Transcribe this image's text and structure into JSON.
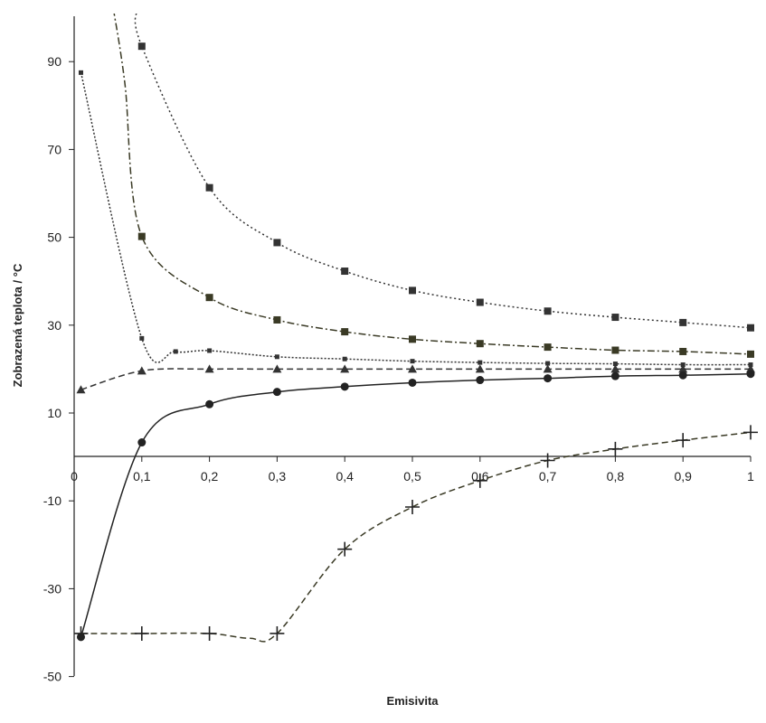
{
  "chart_data": {
    "type": "line",
    "xlabel": "Emisivita",
    "ylabel": "Zobrazená teplota / °C",
    "xlim": [
      0,
      1
    ],
    "ylim": [
      -50,
      100
    ],
    "x_ticks": [
      "0",
      "0,1",
      "0,2",
      "0,3",
      "0,4",
      "0,5",
      "0,6",
      "0,7",
      "0,8",
      "0,9",
      "1"
    ],
    "y_ticks": [
      "-50",
      "-30",
      "-10",
      "10",
      "30",
      "50",
      "70",
      "90"
    ],
    "y_tick_values": [
      -50,
      -30,
      -10,
      10,
      30,
      50,
      70,
      90
    ],
    "grid": false,
    "series": [
      {
        "marker": "square",
        "color": "#333333",
        "dash": "2,3",
        "x": [
          0.1,
          0.2,
          0.3,
          0.4,
          0.5,
          0.6,
          0.7,
          0.8,
          0.9,
          1.0
        ],
        "y": [
          93.5,
          61.3,
          48.8,
          42.3,
          37.9,
          35.2,
          33.2,
          31.8,
          30.6,
          29.4
        ]
      },
      {
        "marker": "square",
        "color": "#3a3a25",
        "dash": "8,3,2,3",
        "x": [
          0.1,
          0.2,
          0.3,
          0.4,
          0.5,
          0.6,
          0.7,
          0.8,
          0.9,
          1.0
        ],
        "y": [
          50.2,
          36.3,
          31.2,
          28.5,
          26.8,
          25.8,
          25.0,
          24.3,
          24.0,
          23.4
        ]
      },
      {
        "marker": "small-square",
        "color": "#333333",
        "dash": "2,2",
        "x": [
          0.01,
          0.1,
          0.15,
          0.2,
          0.3,
          0.4,
          0.5,
          0.6,
          0.7,
          0.8,
          0.9,
          1.0
        ],
        "y": [
          87.5,
          27.0,
          24.0,
          24.2,
          22.8,
          22.3,
          21.8,
          21.5,
          21.3,
          21.2,
          21.0,
          21.0
        ]
      },
      {
        "marker": "triangle",
        "color": "#333333",
        "dash": "7,4",
        "x": [
          0.01,
          0.1,
          0.2,
          0.3,
          0.4,
          0.5,
          0.6,
          0.7,
          0.8,
          0.9,
          1.0
        ],
        "y": [
          15.3,
          19.6,
          20.0,
          20.0,
          20.0,
          20.0,
          20.0,
          20.0,
          20.0,
          20.0,
          20.0
        ]
      },
      {
        "marker": "circle",
        "color": "#222222",
        "dash": "",
        "x": [
          0.01,
          0.1,
          0.2,
          0.3,
          0.4,
          0.5,
          0.6,
          0.7,
          0.8,
          0.9,
          1.0
        ],
        "y": [
          -41.0,
          3.3,
          12.0,
          14.8,
          16.0,
          16.9,
          17.5,
          17.9,
          18.4,
          18.6,
          18.9
        ]
      },
      {
        "marker": "plus",
        "color": "#3a3a25",
        "dash": "7,4",
        "x": [
          0.01,
          0.1,
          0.2,
          0.26,
          0.3,
          0.4,
          0.5,
          0.6,
          0.7,
          0.8,
          0.9,
          1.0
        ],
        "y": [
          -40.2,
          -40.2,
          -40.2,
          -41.3,
          -40.2,
          -21.0,
          -11.4,
          -5.4,
          -0.8,
          1.8,
          3.8,
          5.6
        ]
      }
    ]
  }
}
